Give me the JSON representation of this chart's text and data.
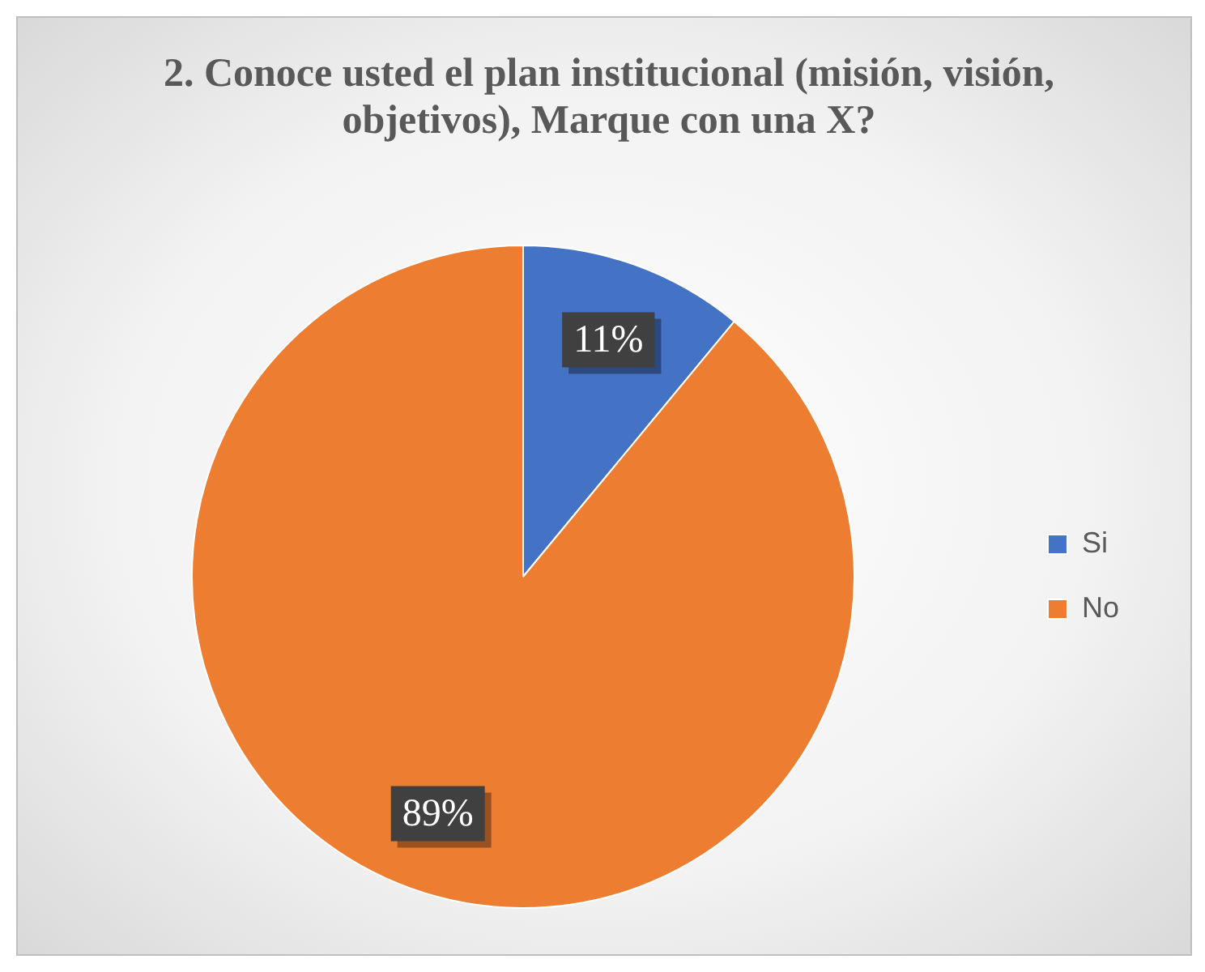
{
  "chart_data": {
    "type": "pie",
    "title": "2. Conoce usted el plan institucional (misión, visión, objetivos), Marque con una X?",
    "categories": [
      "Si",
      "No"
    ],
    "values": [
      11,
      89
    ],
    "colors": [
      "#4472c4",
      "#ed7d31"
    ],
    "value_labels": [
      "11%",
      "89%"
    ],
    "legend": "right"
  }
}
